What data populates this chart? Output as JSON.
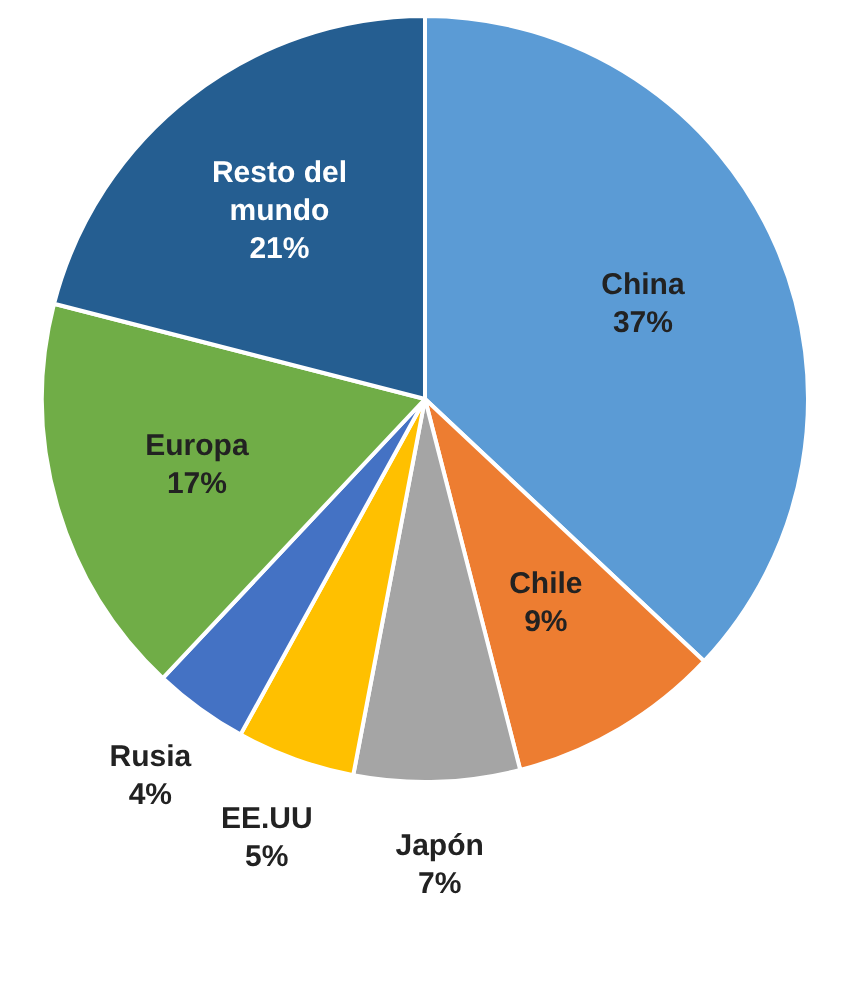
{
  "chart_data": {
    "type": "pie",
    "categories": [
      "China",
      "Chile",
      "Japón",
      "EE.UU",
      "Rusia",
      "Europa",
      "Resto del mundo"
    ],
    "values": [
      37,
      9,
      7,
      5,
      4,
      17,
      21
    ],
    "value_labels": [
      "37%",
      "9%",
      "7%",
      "5%",
      "4%",
      "17%",
      "21%"
    ],
    "colors": [
      "#5b9bd5",
      "#ed7d31",
      "#a5a5a5",
      "#ffc000",
      "#4472c4",
      "#70ad47",
      "#255e91"
    ],
    "legend": false
  }
}
